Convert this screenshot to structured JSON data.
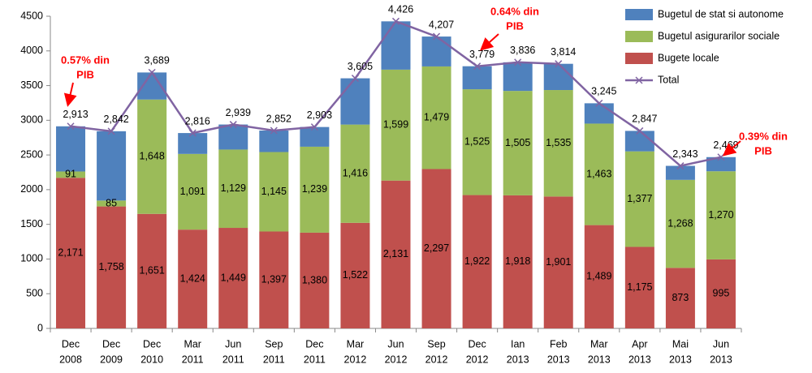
{
  "chart_data": {
    "type": "bar",
    "stacked": true,
    "categories": [
      [
        "Dec",
        "2008"
      ],
      [
        "Dec",
        "2009"
      ],
      [
        "Dec",
        "2010"
      ],
      [
        "Mar",
        "2011"
      ],
      [
        "Jun",
        "2011"
      ],
      [
        "Sep",
        "2011"
      ],
      [
        "Dec",
        "2011"
      ],
      [
        "Mar",
        "2012"
      ],
      [
        "Jun",
        "2012"
      ],
      [
        "Sep",
        "2012"
      ],
      [
        "Dec",
        "2012"
      ],
      [
        "Ian",
        "2013"
      ],
      [
        "Feb",
        "2013"
      ],
      [
        "Mar",
        "2013"
      ],
      [
        "Apr",
        "2013"
      ],
      [
        "Mai",
        "2013"
      ],
      [
        "Jun",
        "2013"
      ]
    ],
    "series": [
      {
        "name": "Bugete locale",
        "type": "bar",
        "color": "#c0504d",
        "values": [
          2171,
          1758,
          1651,
          1424,
          1449,
          1397,
          1380,
          1522,
          2131,
          2297,
          1922,
          1918,
          1901,
          1489,
          1175,
          873,
          995
        ],
        "value_labels": [
          "2,171",
          "1,758",
          "1,651",
          "1,424",
          "1,449",
          "1,397",
          "1,380",
          "1,522",
          "2,131",
          "2,297",
          "1,922",
          "1,918",
          "1,901",
          "1,489",
          "1,175",
          "873",
          "995"
        ]
      },
      {
        "name": "Bugetul asigurarilor sociale",
        "type": "bar",
        "color": "#9bbb59",
        "values": [
          91,
          85,
          1648,
          1091,
          1129,
          1145,
          1239,
          1416,
          1599,
          1479,
          1525,
          1505,
          1535,
          1463,
          1377,
          1268,
          1270
        ],
        "value_labels": [
          "91",
          "85",
          "1,648",
          "1,091",
          "1,129",
          "1,145",
          "1,239",
          "1,416",
          "1,599",
          "1,479",
          "1,525",
          "1,505",
          "1,535",
          "1,463",
          "1,377",
          "1,268",
          "1,270"
        ]
      },
      {
        "name": "Bugetul de stat si autonome",
        "type": "bar",
        "color": "#4f81bd",
        "values": [
          651,
          999,
          390,
          301,
          361,
          310,
          284,
          667,
          696,
          431,
          332,
          413,
          378,
          293,
          295,
          202,
          204
        ]
      },
      {
        "name": "Total",
        "type": "line",
        "color": "#8064a2",
        "values": [
          2913,
          2842,
          3689,
          2816,
          2939,
          2852,
          2903,
          3605,
          4426,
          4207,
          3779,
          3836,
          3814,
          3245,
          2847,
          2343,
          2469
        ],
        "value_labels": [
          "2,913",
          "2,842",
          "3,689",
          "2,816",
          "2,939",
          "2,852",
          "2,903",
          "3,605",
          "4,426",
          "4,207",
          "3,779",
          "3,836",
          "3,814",
          "3,245",
          "2,847",
          "2,343",
          "2,469"
        ]
      }
    ],
    "ylim": [
      0,
      4500
    ],
    "yticks": [
      0,
      500,
      1000,
      1500,
      2000,
      2500,
      3000,
      3500,
      4000,
      4500
    ],
    "grid": false,
    "legend": "top-right",
    "annotations": [
      {
        "lines": [
          "0.57% din",
          "PIB"
        ]
      },
      {
        "lines": [
          "0.64% din",
          "PIB"
        ]
      },
      {
        "lines": [
          "0.39% din",
          "PIB"
        ]
      }
    ]
  }
}
